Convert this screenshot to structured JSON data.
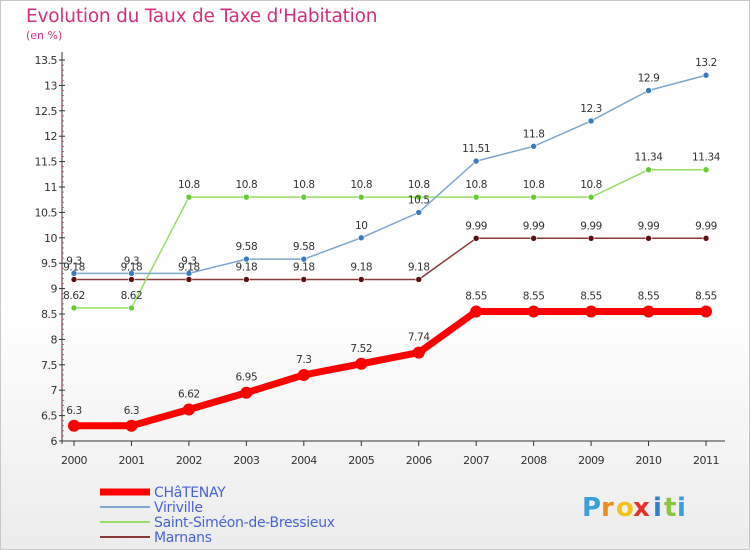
{
  "chart_data": {
    "type": "line",
    "title": "Evolution du Taux de Taxe d'Habitation",
    "subtitle": "(en %)",
    "categories": [
      "2000",
      "2001",
      "2002",
      "2003",
      "2004",
      "2005",
      "2006",
      "2007",
      "2008",
      "2009",
      "2010",
      "2011"
    ],
    "ylim": [
      6,
      13.5
    ],
    "yticks": [
      "6",
      "6.5",
      "7",
      "7.5",
      "8",
      "8.5",
      "9",
      "9.5",
      "10",
      "10.5",
      "11",
      "11.5",
      "12",
      "12.5",
      "13",
      "13.5"
    ],
    "grid": false,
    "legend_position": "bottom-left",
    "series": [
      {
        "name": "CHâTENAY",
        "color": "#ff0000",
        "width": 7,
        "marker_r": 6,
        "values": [
          6.3,
          6.3,
          6.62,
          6.95,
          7.3,
          7.52,
          7.74,
          8.55,
          8.55,
          8.55,
          8.55,
          8.55
        ],
        "labels": [
          "6.3",
          "6.3",
          "6.62",
          "6.95",
          "7.3",
          "7.52",
          "7.74",
          "8.55",
          "8.55",
          "8.55",
          "8.55",
          "8.55"
        ]
      },
      {
        "name": "Viriville",
        "color": "#7fa7cf",
        "marker": "#3a7bc0",
        "width": 1.5,
        "marker_r": 3,
        "values": [
          9.3,
          9.3,
          9.3,
          9.58,
          9.58,
          10,
          10.5,
          11.51,
          11.8,
          12.3,
          12.9,
          13.2
        ],
        "labels": [
          "9.3",
          "9.3",
          "9.3",
          "9.58",
          "9.58",
          "10",
          "10.5",
          "11.51",
          "11.8",
          "12.3",
          "12.9",
          "13.2"
        ]
      },
      {
        "name": "Saint-Siméon-de-Bressieux",
        "color": "#99dd66",
        "marker": "#66cc33",
        "width": 1.5,
        "marker_r": 3,
        "values": [
          8.62,
          8.62,
          10.8,
          10.8,
          10.8,
          10.8,
          10.8,
          10.8,
          10.8,
          10.8,
          11.34,
          11.34
        ],
        "labels": [
          "8.62",
          "8.62",
          "10.8",
          "10.8",
          "10.8",
          "10.8",
          "10.8",
          "10.8",
          "10.8",
          "10.8",
          "11.34",
          "11.34"
        ]
      },
      {
        "name": "Marnans",
        "color": "#8b3a3a",
        "marker": "#5a1010",
        "width": 1.5,
        "marker_r": 3,
        "values": [
          9.18,
          9.18,
          9.18,
          9.18,
          9.18,
          9.18,
          9.18,
          9.99,
          9.99,
          9.99,
          9.99,
          9.99
        ],
        "labels": [
          "9.18",
          "9.18",
          "9.18",
          "9.18",
          "9.18",
          "9.18",
          "9.18",
          "9.99",
          "9.99",
          "9.99",
          "9.99",
          "9.99"
        ]
      }
    ]
  },
  "logo": {
    "letters": [
      "P",
      "r",
      "o",
      "x",
      "i",
      "t",
      "i"
    ],
    "colors": [
      "#3aa0d8",
      "#f08a1c",
      "#f4c21a",
      "#e8312a",
      "#2e7fd1",
      "#8cc63e",
      "#3aa0d8"
    ]
  }
}
